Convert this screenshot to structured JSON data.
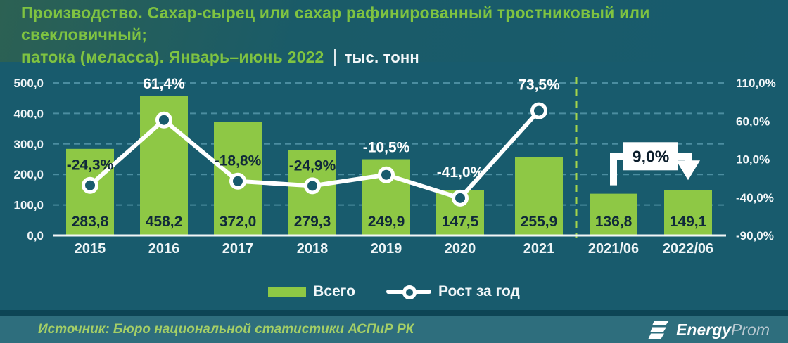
{
  "header": {
    "title_line1": "Производство. Сахар-сырец или сахар рафинированный тростниковый или свекловичный;",
    "title_line2": "патока (меласса). Январь–июнь 2022",
    "units": "тыс. тонн"
  },
  "colors": {
    "background": "#185b6d",
    "bar": "#8ec845",
    "grid": "#4b8da0",
    "separator": "#a4d44b",
    "line": "#ffffff",
    "value_text": "#10293a",
    "title_green": "#7fc341",
    "footer_bg": "#2e6e7d",
    "source_text": "#a5cf66"
  },
  "chart_data": {
    "type": "bar",
    "categories": [
      "2015",
      "2016",
      "2017",
      "2018",
      "2019",
      "2020",
      "2021",
      "2021/06",
      "2022/06"
    ],
    "series": [
      {
        "name": "Всего",
        "type": "bar",
        "values": [
          283.8,
          458.2,
          372.0,
          279.3,
          249.9,
          147.5,
          255.9,
          136.8,
          149.1
        ],
        "labels": [
          "283,8",
          "458,2",
          "372,0",
          "279,3",
          "249,9",
          "147,5",
          "255,9",
          "136,8",
          "149,1"
        ]
      },
      {
        "name": "Рост за год",
        "type": "line",
        "values": [
          -24.3,
          61.4,
          -18.8,
          -24.9,
          -10.5,
          -41.0,
          73.5,
          null,
          null
        ],
        "labels": [
          "-24,3%",
          "61,4%",
          "-18,8%",
          "-24,9%",
          "-10,5%",
          "-41,0%",
          "73,5%",
          null,
          null
        ]
      }
    ],
    "left_axis": {
      "min": 0,
      "max": 500,
      "tick_values": [
        500,
        400,
        300,
        200,
        100,
        0
      ],
      "tick_labels": [
        "500,0",
        "400,0",
        "300,0",
        "200,0",
        "100,0",
        "0,0"
      ]
    },
    "right_axis": {
      "min": -90,
      "max": 110,
      "tick_values": [
        110,
        60,
        10,
        -40,
        -90
      ],
      "tick_labels": [
        "110,0%",
        "60,0%",
        "10,0%",
        "-40,0%",
        "-90,0%"
      ]
    },
    "separator_after": "2021",
    "annotation": {
      "label": "9,0%",
      "from": "2021/06",
      "to": "2022/06"
    },
    "grid": true,
    "legend_position": "bottom",
    "title": "Производство. Сахар-сырец или сахар рафинированный тростниковый или свекловичный; патока (меласса). Январь–июнь 2022",
    "ylabel_left": "тыс. тонн",
    "ylabel_right": "%"
  },
  "legend": {
    "bar_label": "Всего",
    "line_label": "Рост за год"
  },
  "footer": {
    "source": "Источник: Бюро национальной статистики АСПиР РК",
    "logo_bold": "Energy",
    "logo_light": "Prom"
  }
}
